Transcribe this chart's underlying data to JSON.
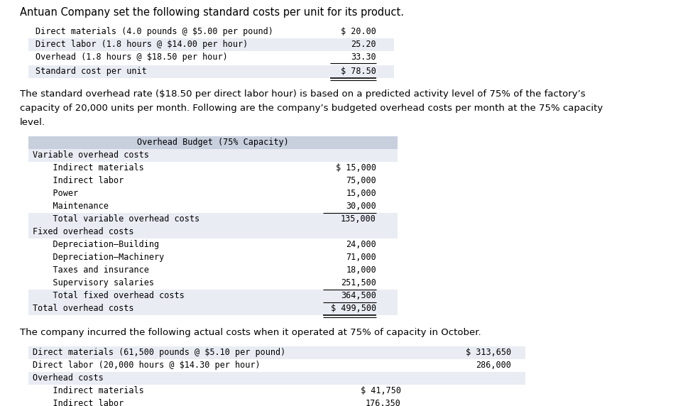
{
  "title": "Antuan Company set the following standard costs per unit for its product.",
  "background_color": "#ffffff",
  "standard_costs": {
    "rows": [
      {
        "label": "Direct materials (4.0 pounds @ $5.00 per pound)",
        "value": "$ 20.00",
        "underline": false
      },
      {
        "label": "Direct labor (1.8 hours @ $14.00 per hour)",
        "value": "25.20",
        "underline": false
      },
      {
        "label": "Overhead (1.8 hours @ $18.50 per hour)",
        "value": "33.30",
        "underline": true
      }
    ],
    "total_label": "Standard cost per unit",
    "total_value": "$ 78.50"
  },
  "paragraph": "The standard overhead rate ($18.50 per direct labor hour) is based on a predicted activity level of 75% of the factory’s\ncapacity of 20,000 units per month. Following are the company’s budgeted overhead costs per month at the 75% capacity\nlevel.",
  "overhead_budget": {
    "header": "Overhead Budget (75% Capacity)",
    "sections": [
      {
        "section_label": "Variable overhead costs",
        "items": [
          {
            "label": "    Indirect materials",
            "value": "$ 15,000"
          },
          {
            "label": "    Indirect labor",
            "value": "75,000"
          },
          {
            "label": "    Power",
            "value": "15,000"
          },
          {
            "label": "    Maintenance",
            "value": "30,000"
          }
        ],
        "total_label": "    Total variable overhead costs",
        "total_value": "135,000"
      },
      {
        "section_label": "Fixed overhead costs",
        "items": [
          {
            "label": "    Depreciation–Building",
            "value": "24,000"
          },
          {
            "label": "    Depreciation–Machinery",
            "value": "71,000"
          },
          {
            "label": "    Taxes and insurance",
            "value": "18,000"
          },
          {
            "label": "    Supervisory salaries",
            "value": "251,500"
          }
        ],
        "total_label": "    Total fixed overhead costs",
        "total_value": "364,500"
      }
    ],
    "grand_total_label": "Total overhead costs",
    "grand_total_value": "$ 499,500"
  },
  "paragraph2": "The company incurred the following actual costs when it operated at 75% of capacity in October.",
  "actual_costs": {
    "rows": [
      {
        "label": "Direct materials (61,500 pounds @ $5.10 per pound)",
        "value1": "",
        "value2": "$ 313,650"
      },
      {
        "label": "Direct labor (20,000 hours @ $14.30 per hour)",
        "value1": "",
        "value2": "286,000"
      },
      {
        "label": "Overhead costs",
        "value1": "",
        "value2": ""
      }
    ],
    "overhead_items": [
      {
        "label": "    Indirect materials",
        "value1": "$ 41,750",
        "value2": ""
      },
      {
        "label": "    Indirect labor",
        "value1": "176,350",
        "value2": ""
      }
    ]
  },
  "font_family": "monospace",
  "header_bg": "#c8d0de",
  "table_bg": "#eaecf4",
  "row_bg": "#ffffff"
}
